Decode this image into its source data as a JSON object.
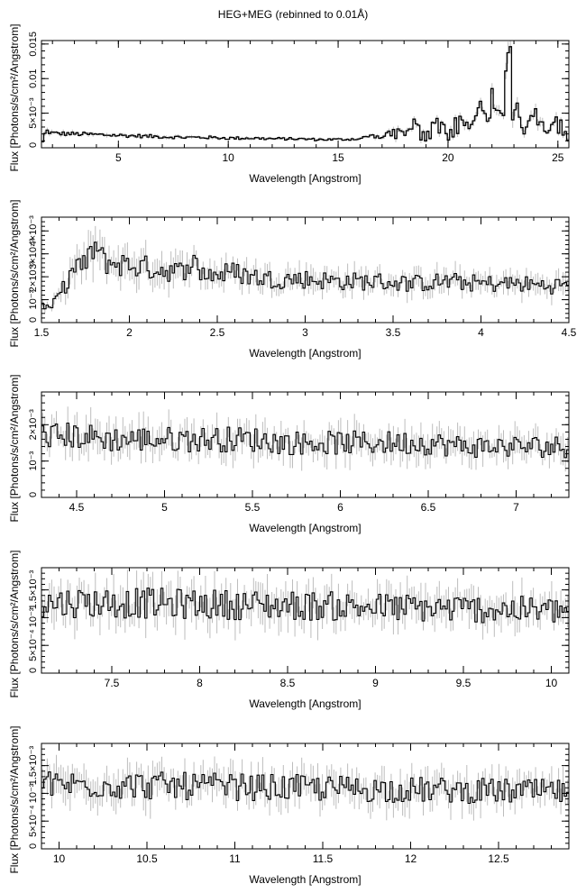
{
  "title": "HEG+MEG (rebinned to 0.01Å)",
  "chart_data": [
    {
      "type": "line",
      "xlabel": "Wavelength [Angstrom]",
      "ylabel": "Flux [Photons/s/cm²/Angstrom]",
      "xlim": [
        1.5,
        25.5
      ],
      "ylim": [
        0,
        0.0155
      ],
      "xticks": [
        5,
        10,
        15,
        20,
        25
      ],
      "xtick_labels": [
        "5",
        "10",
        "15",
        "20",
        "25"
      ],
      "yticks": [
        0,
        0.005,
        0.01,
        0.015
      ],
      "ytick_labels": [
        "0",
        "5×10⁻³",
        "0.01",
        "0.015"
      ],
      "series": [
        {
          "x": [
            1.55,
            1.7,
            2.0,
            3.0,
            4.0,
            5.0,
            6.0,
            7.0,
            8.0,
            9.0,
            10.0,
            11.0,
            12.0,
            13.0,
            14.0,
            15.0,
            16.0,
            16.5,
            17.0,
            17.5,
            18.0,
            18.5,
            19.0,
            19.5,
            20.0,
            20.5,
            21.0,
            21.5,
            21.8,
            22.0,
            22.5,
            22.8,
            23.0,
            23.5,
            24.0,
            24.5,
            25.0,
            25.5
          ],
          "y": [
            0.0008,
            0.0025,
            0.0021,
            0.002,
            0.0019,
            0.0018,
            0.0017,
            0.0016,
            0.0015,
            0.0015,
            0.0014,
            0.0014,
            0.0013,
            0.0013,
            0.0012,
            0.0012,
            0.0013,
            0.0018,
            0.0014,
            0.003,
            0.0019,
            0.0035,
            0.002,
            0.004,
            0.0025,
            0.0045,
            0.003,
            0.006,
            0.0033,
            0.0068,
            0.004,
            0.015,
            0.008,
            0.0025,
            0.0055,
            0.002,
            0.004,
            0.0015
          ]
        }
      ]
    },
    {
      "type": "line",
      "xlabel": "Wavelength [Angstrom]",
      "ylabel": "Flux [Photons/s/cm²/Angstrom]",
      "xlim": [
        1.5,
        4.5
      ],
      "ylim": [
        0,
        0.0046
      ],
      "xticks": [
        1.5,
        2,
        2.5,
        3,
        3.5,
        4,
        4.5
      ],
      "xtick_labels": [
        "1.5",
        "2",
        "2.5",
        "3",
        "3.5",
        "4",
        "4.5"
      ],
      "yticks": [
        0,
        0.001,
        0.002,
        0.003,
        0.004
      ],
      "ytick_labels": [
        "0",
        "10⁻³",
        "2×10⁻³",
        "3×10⁻³",
        "4×10⁻³"
      ],
      "series": [
        {
          "x": [
            1.5,
            1.55,
            1.6,
            1.65,
            1.7,
            1.75,
            1.8,
            1.85,
            1.9,
            2.0,
            2.1,
            2.2,
            2.3,
            2.35,
            2.4,
            2.5,
            2.6,
            2.7,
            2.8,
            2.9,
            3.0,
            3.2,
            3.4,
            3.6,
            3.8,
            4.0,
            4.2,
            4.4,
            4.5
          ],
          "y": [
            0.0008,
            0.0006,
            0.0012,
            0.0018,
            0.0026,
            0.0024,
            0.0034,
            0.0027,
            0.0026,
            0.0025,
            0.0024,
            0.0023,
            0.0022,
            0.0028,
            0.0022,
            0.0021,
            0.0022,
            0.002,
            0.0019,
            0.0019,
            0.0019,
            0.0018,
            0.0018,
            0.0017,
            0.0018,
            0.0017,
            0.0017,
            0.0016,
            0.0017
          ]
        }
      ]
    },
    {
      "type": "line",
      "xlabel": "Wavelength [Angstrom]",
      "ylabel": "Flux [Photons/s/cm²/Angstrom]",
      "xlim": [
        4.3,
        7.3
      ],
      "ylim": [
        0,
        0.0029
      ],
      "xticks": [
        4.5,
        5,
        5.5,
        6,
        6.5,
        7
      ],
      "xtick_labels": [
        "4.5",
        "5",
        "5.5",
        "6",
        "6.5",
        "7"
      ],
      "yticks": [
        0,
        0.001,
        0.002
      ],
      "ytick_labels": [
        "0",
        "10⁻³",
        "2×10⁻³"
      ],
      "series": [
        {
          "x": [
            4.3,
            4.5,
            4.7,
            4.9,
            5.1,
            5.3,
            5.5,
            5.7,
            5.9,
            6.1,
            6.3,
            6.5,
            6.7,
            6.9,
            7.1,
            7.3
          ],
          "y": [
            0.0017,
            0.0017,
            0.0016,
            0.0016,
            0.0016,
            0.0016,
            0.0016,
            0.0015,
            0.0015,
            0.0015,
            0.0015,
            0.0015,
            0.0014,
            0.0014,
            0.0014,
            0.0014
          ]
        }
      ]
    },
    {
      "type": "line",
      "xlabel": "Wavelength [Angstrom]",
      "ylabel": "Flux [Photons/s/cm²/Angstrom]",
      "xlim": [
        7.1,
        10.1
      ],
      "ylim": [
        0,
        0.0019
      ],
      "xticks": [
        7.5,
        8,
        8.5,
        9,
        9.5,
        10
      ],
      "xtick_labels": [
        "7.5",
        "8",
        "8.5",
        "9",
        "9.5",
        "10"
      ],
      "yticks": [
        0,
        0.0005,
        0.001,
        0.0015
      ],
      "ytick_labels": [
        "0",
        "5×10⁻⁴",
        "10⁻³",
        "1.5×10⁻³"
      ],
      "series": [
        {
          "x": [
            7.1,
            7.3,
            7.5,
            7.7,
            7.9,
            8.1,
            8.3,
            8.5,
            8.7,
            8.9,
            9.1,
            9.3,
            9.5,
            9.7,
            9.9,
            10.1
          ],
          "y": [
            0.00125,
            0.00128,
            0.00127,
            0.00126,
            0.00125,
            0.00124,
            0.00123,
            0.00122,
            0.00121,
            0.0012,
            0.00118,
            0.00117,
            0.00116,
            0.00115,
            0.00113,
            0.00112
          ]
        }
      ]
    },
    {
      "type": "line",
      "xlabel": "Wavelength [Angstrom]",
      "ylabel": "Flux [Photons/s/cm²/Angstrom]",
      "xlim": [
        9.9,
        12.9
      ],
      "ylim": [
        0,
        0.0019
      ],
      "xticks": [
        10,
        10.5,
        11,
        11.5,
        12,
        12.5
      ],
      "xtick_labels": [
        "10",
        "10.5",
        "11",
        "11.5",
        "12",
        "12.5"
      ],
      "yticks": [
        0,
        0.0005,
        0.001,
        0.0015
      ],
      "ytick_labels": [
        "0",
        "5×10⁻⁴",
        "10⁻³",
        "1.5×10⁻³"
      ],
      "series": [
        {
          "x": [
            9.9,
            10.1,
            10.3,
            10.5,
            10.7,
            10.9,
            11.1,
            11.3,
            11.5,
            11.7,
            11.9,
            12.1,
            12.3,
            12.5,
            12.7,
            12.9
          ],
          "y": [
            0.00115,
            0.00116,
            0.00115,
            0.00114,
            0.00113,
            0.00112,
            0.00111,
            0.0011,
            0.00109,
            0.00108,
            0.00107,
            0.00106,
            0.00105,
            0.00104,
            0.00103,
            0.00102
          ]
        }
      ]
    }
  ]
}
